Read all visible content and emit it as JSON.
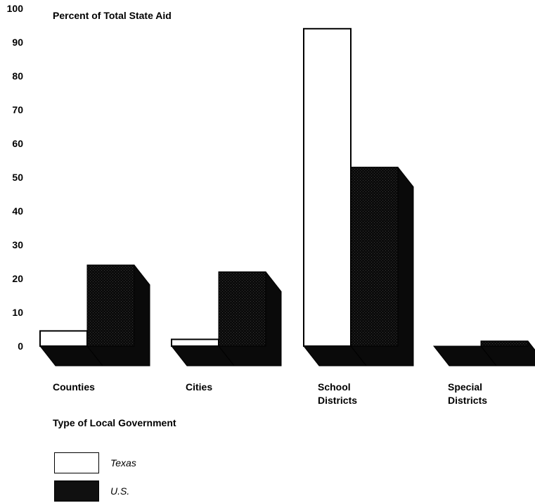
{
  "chart_data": {
    "type": "bar",
    "ylabel": "Percent of Total State Aid",
    "xlabel": "Type of Local Government",
    "ylim": [
      0,
      100
    ],
    "yticks": [
      "0",
      "10",
      "20",
      "30",
      "40",
      "50",
      "60",
      "70",
      "80",
      "90",
      "100"
    ],
    "categories": [
      [
        "Counties"
      ],
      [
        "Cities"
      ],
      [
        "School",
        "Districts"
      ],
      [
        "Special",
        "Districts"
      ]
    ],
    "series": [
      {
        "name": "Texas",
        "values": [
          4.5,
          2,
          94,
          0
        ],
        "color": "#ffffff"
      },
      {
        "name": "U.S.",
        "values": [
          24,
          22,
          53,
          1.5
        ],
        "color": "#0a0a0a"
      }
    ],
    "style": "3d-bars",
    "grid": false,
    "legend_placement": "bottom-left"
  }
}
